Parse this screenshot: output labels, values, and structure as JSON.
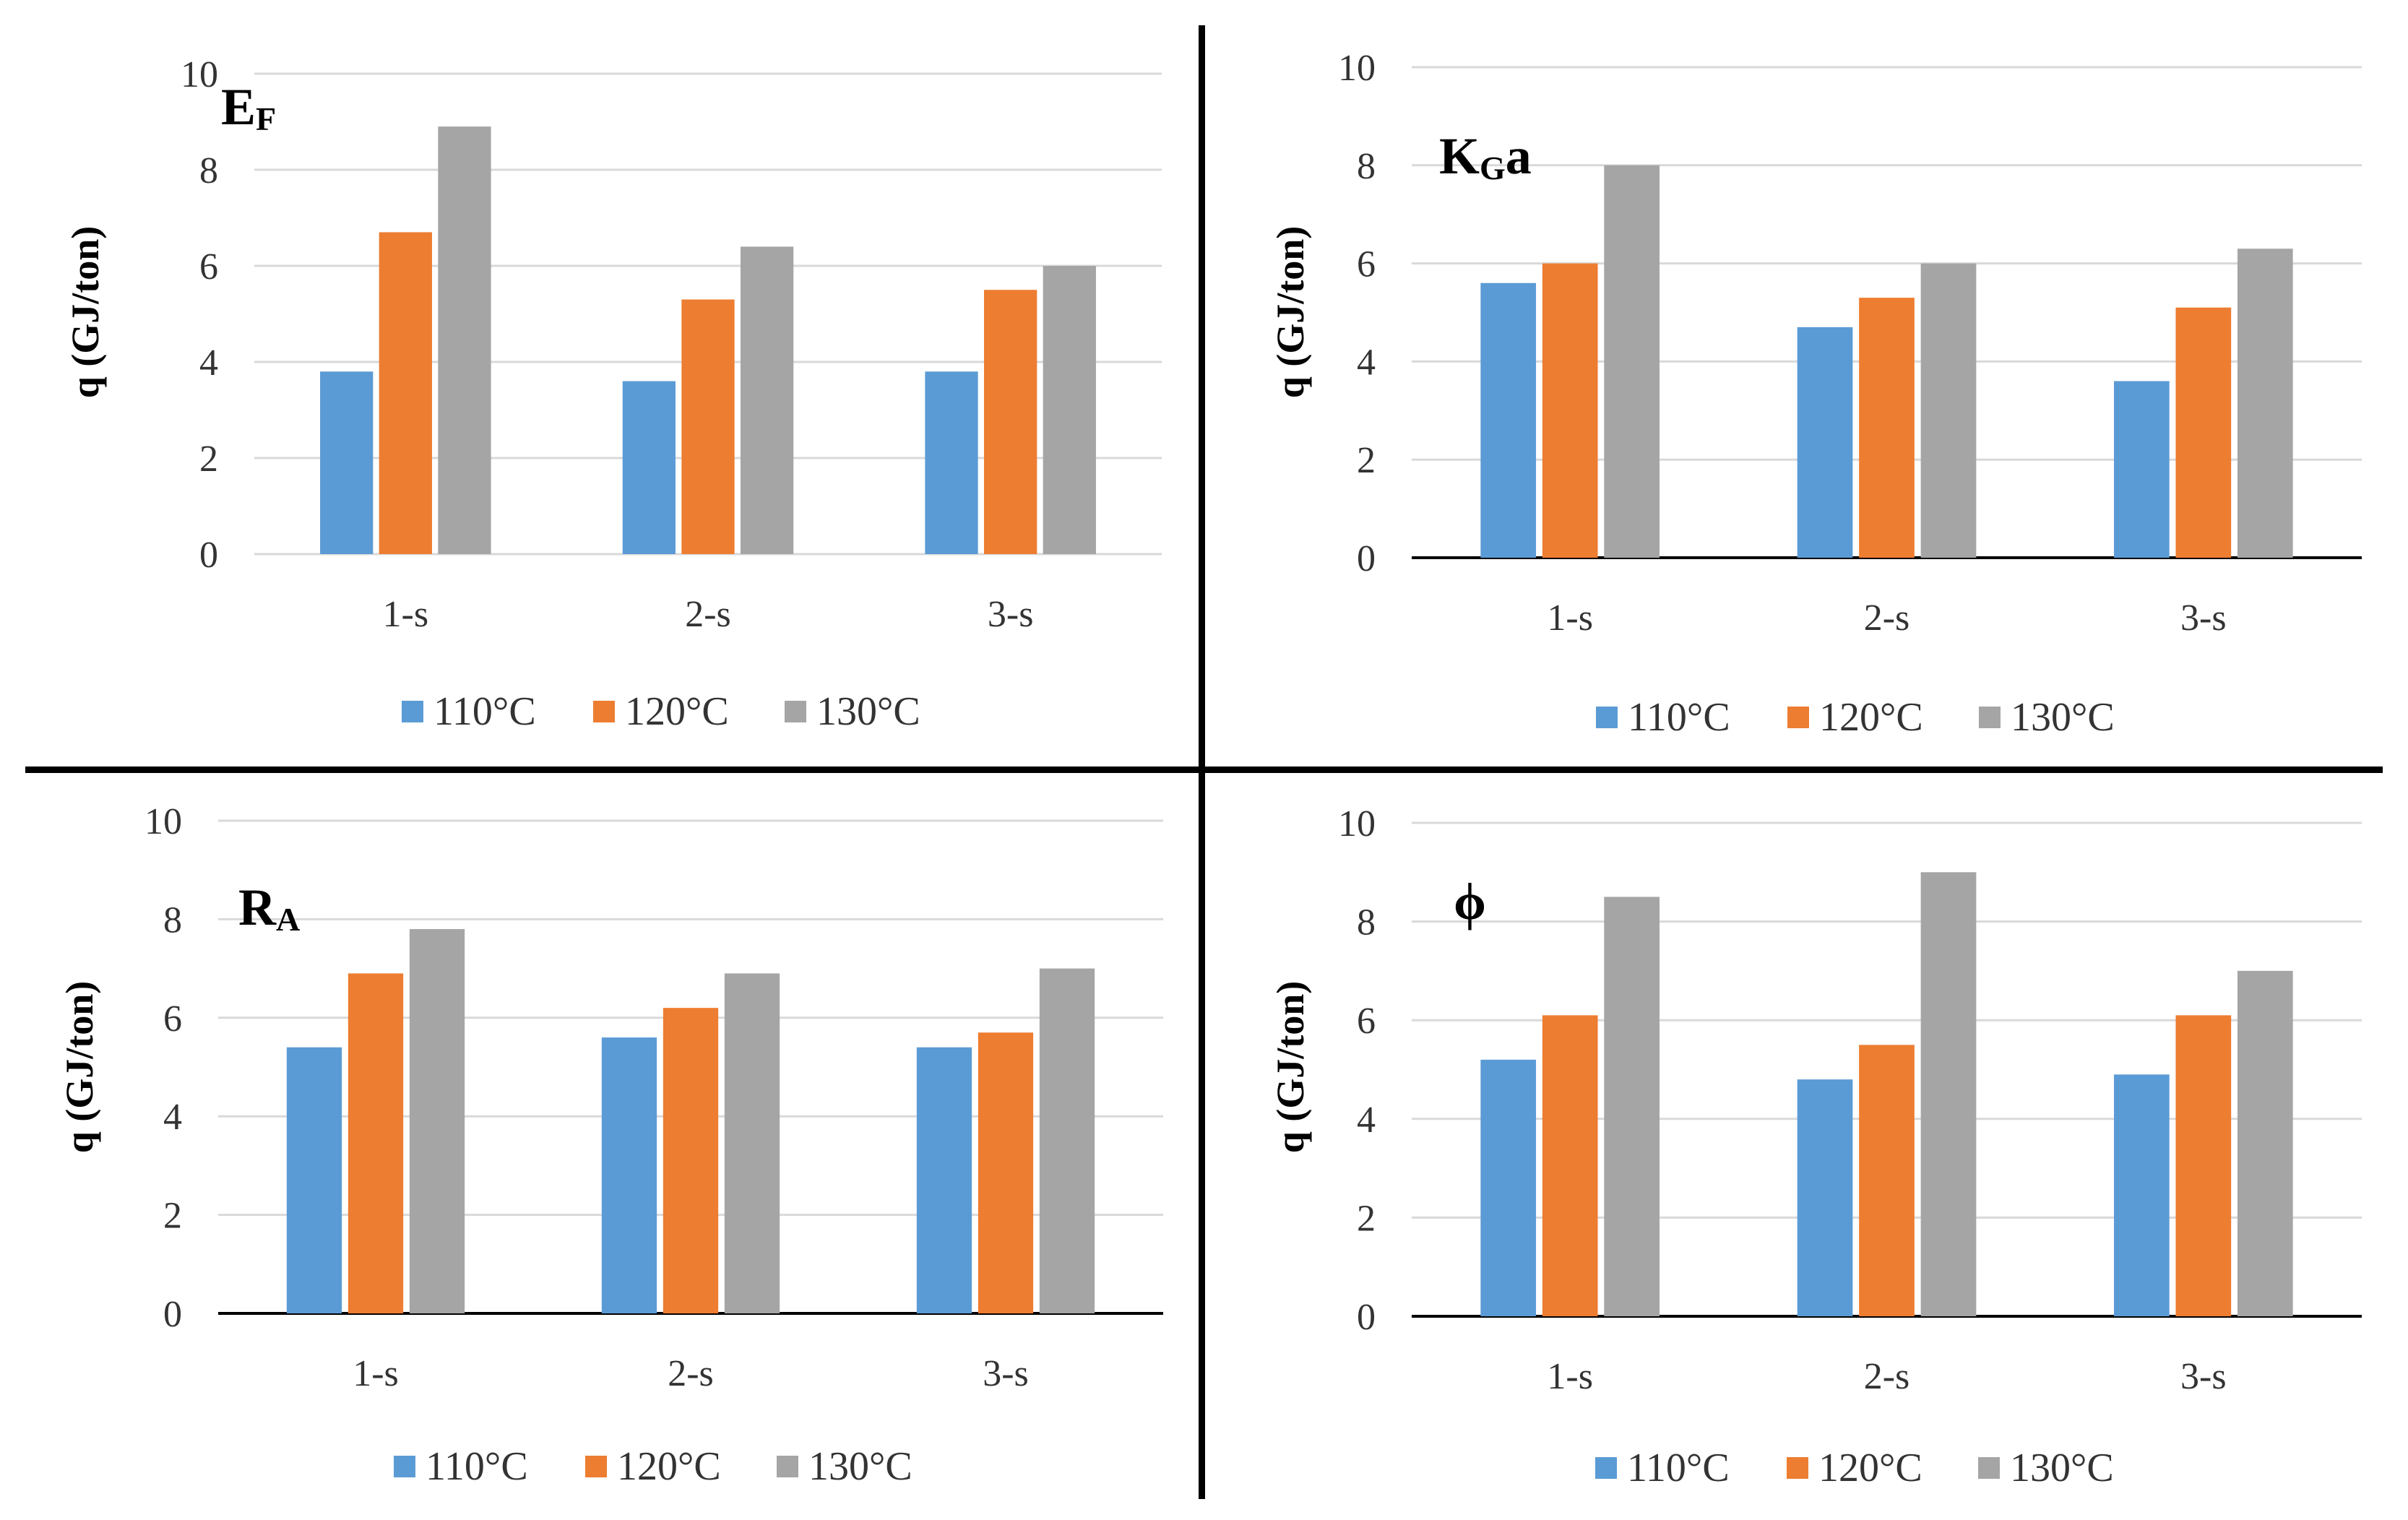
{
  "chart_data": [
    {
      "type": "bar",
      "title_main": "E",
      "title_sub": "F",
      "ylabel": "q (GJ/ton)",
      "categories": [
        "1-s",
        "2-s",
        "3-s"
      ],
      "ylim": [
        0,
        10
      ],
      "yticks": [
        "0",
        "2",
        "4",
        "6",
        "8",
        "10"
      ],
      "series": [
        {
          "name": "110°C",
          "values": [
            3.8,
            3.6,
            3.8
          ]
        },
        {
          "name": "120°C",
          "values": [
            6.7,
            5.3,
            5.5
          ]
        },
        {
          "name": "130°C",
          "values": [
            8.9,
            6.4,
            6.0
          ]
        }
      ]
    },
    {
      "type": "bar",
      "title_main": "K",
      "title_sub": "G",
      "title_suffix": "a",
      "ylabel": "q (GJ/ton)",
      "categories": [
        "1-s",
        "2-s",
        "3-s"
      ],
      "ylim": [
        0,
        10
      ],
      "yticks": [
        "0",
        "2",
        "4",
        "6",
        "8",
        "10"
      ],
      "series": [
        {
          "name": "110°C",
          "values": [
            5.6,
            4.7,
            3.6
          ]
        },
        {
          "name": "120°C",
          "values": [
            6.0,
            5.3,
            5.1
          ]
        },
        {
          "name": "130°C",
          "values": [
            8.0,
            6.0,
            6.3
          ]
        }
      ]
    },
    {
      "type": "bar",
      "title_main": "R",
      "title_sub": "A",
      "ylabel": "q (GJ/ton)",
      "categories": [
        "1-s",
        "2-s",
        "3-s"
      ],
      "ylim": [
        0,
        10
      ],
      "yticks": [
        "0",
        "2",
        "4",
        "6",
        "8",
        "10"
      ],
      "series": [
        {
          "name": "110°C",
          "values": [
            5.4,
            5.6,
            5.4
          ]
        },
        {
          "name": "120°C",
          "values": [
            6.9,
            6.2,
            5.7
          ]
        },
        {
          "name": "130°C",
          "values": [
            7.8,
            6.9,
            7.0
          ]
        }
      ]
    },
    {
      "type": "bar",
      "title_main": "ϕ",
      "ylabel": "q (GJ/ton)",
      "categories": [
        "1-s",
        "2-s",
        "3-s"
      ],
      "ylim": [
        0,
        10
      ],
      "yticks": [
        "0",
        "2",
        "4",
        "6",
        "8",
        "10"
      ],
      "series": [
        {
          "name": "110°C",
          "values": [
            5.2,
            4.8,
            4.9
          ]
        },
        {
          "name": "120°C",
          "values": [
            6.1,
            5.5,
            6.1
          ]
        },
        {
          "name": "130°C",
          "values": [
            8.5,
            9.0,
            7.0
          ]
        }
      ]
    }
  ],
  "colors": [
    "#5b9bd5",
    "#ed7d31",
    "#a5a5a5"
  ],
  "gridline_color": "#d9d9d9",
  "axis_color": "#000000"
}
